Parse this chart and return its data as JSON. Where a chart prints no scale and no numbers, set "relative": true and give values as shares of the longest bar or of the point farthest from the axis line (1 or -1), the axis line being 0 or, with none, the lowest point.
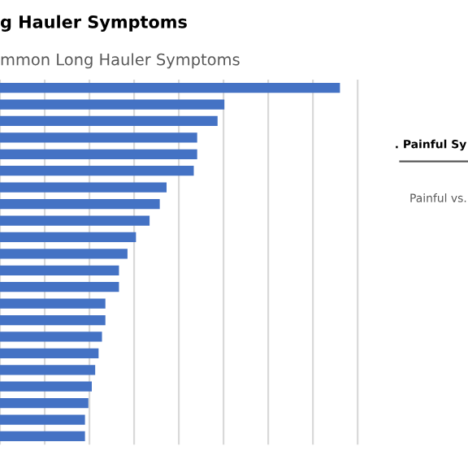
{
  "chart_data": [
    {
      "type": "bar",
      "orientation": "horizontal",
      "relative": true,
      "title": "g Hauler Symptoms",
      "subtitle": "mmon Long Hauler Symptoms",
      "grid": "x",
      "categories": [
        null,
        null,
        null,
        null,
        null,
        null,
        null,
        null,
        null,
        null,
        null,
        null,
        null,
        null,
        null,
        null,
        null,
        null,
        null,
        null,
        null,
        null
      ],
      "values": [
        1,
        0.66,
        0.64,
        0.58,
        0.58,
        0.57,
        0.49,
        0.47,
        0.44,
        0.4,
        0.375,
        0.35,
        0.35,
        0.31,
        0.31,
        0.3,
        0.29,
        0.28,
        0.27,
        0.26,
        0.25,
        0.25
      ],
      "color": "#4472c4"
    },
    {
      "type": "other",
      "title": ". Painful Sy",
      "subtitle": "Painful vs."
    }
  ]
}
